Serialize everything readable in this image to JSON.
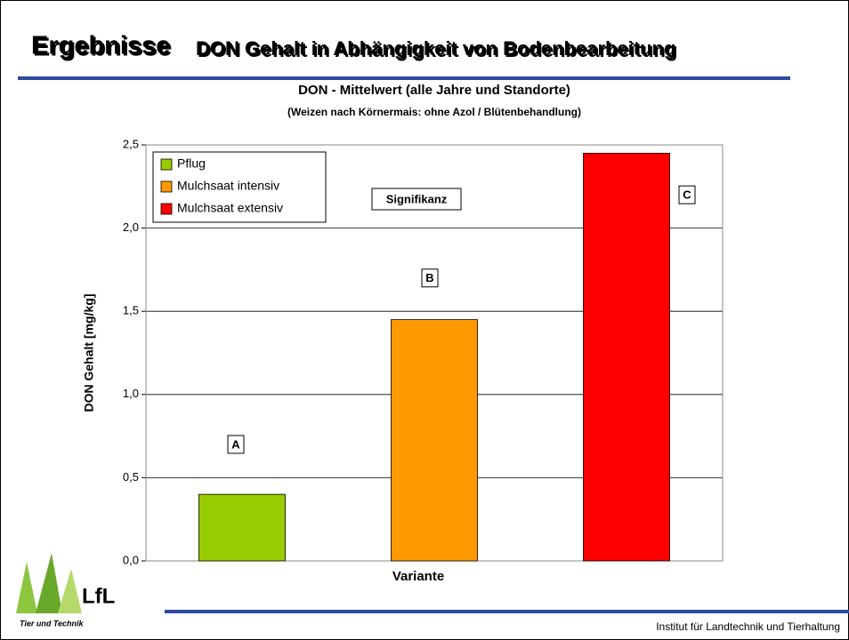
{
  "slide": {
    "title": "Ergebnisse",
    "title_rest": "DON Gehalt in Abhängigkeit von Bodenbearbeitung",
    "footer": "Institut für Landtechnik und Tierhaltung",
    "logo": "LfL",
    "logo_sub": "Tier und Technik"
  },
  "chart_data": {
    "type": "bar",
    "title": "DON  - Mittelwert (alle Jahre und Standorte)",
    "subtitle": "(Weizen nach Körnermais: ohne Azol / Blütenbehandlung)",
    "y_label": "DON Gehalt [mg/kg]",
    "x_label": "Variante",
    "categories": [
      null
    ],
    "series": [
      {
        "name": "Pflug",
        "color": "#99cc00",
        "values": [
          0.4
        ],
        "significance": "A"
      },
      {
        "name": "Mulchsaat intensiv",
        "color": "#ff9900",
        "values": [
          1.45
        ],
        "significance": "B"
      },
      {
        "name": "Mulchsaat extensiv",
        "color": "#ff0000",
        "values": [
          2.45
        ],
        "significance": "C"
      }
    ],
    "annotation": "Signifikanz",
    "ylim": [
      0,
      2.5
    ],
    "yticks": [
      {
        "value": 0,
        "label": "0,0"
      },
      {
        "value": 0.5,
        "label": "0,5"
      },
      {
        "value": 1,
        "label": "1,0"
      },
      {
        "value": 1.5,
        "label": "1,5"
      },
      {
        "value": 2,
        "label": "2,0"
      },
      {
        "value": 2.5,
        "label": "2,5"
      }
    ],
    "grid": true,
    "legend": "top-left"
  }
}
